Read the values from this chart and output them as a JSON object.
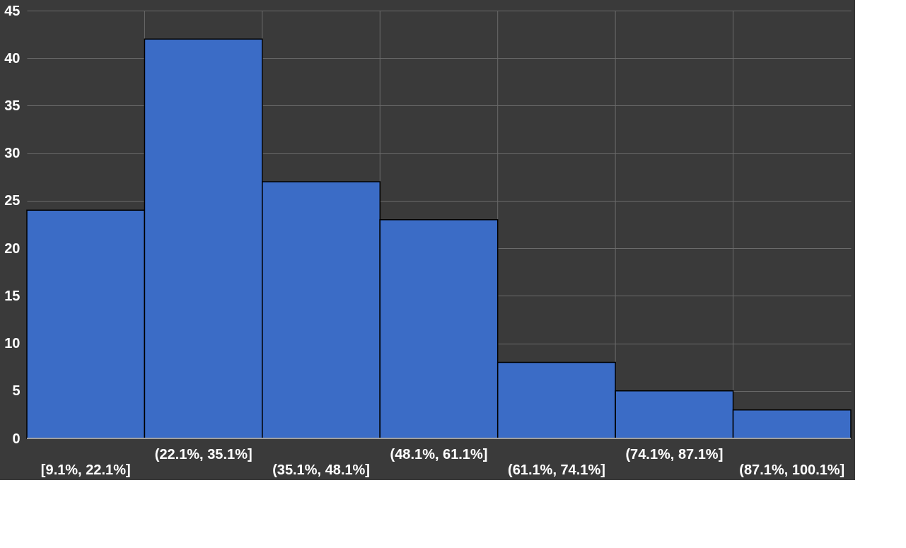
{
  "chart_data": {
    "type": "bar",
    "categories": [
      "[9.1%, 22.1%]",
      "(22.1%, 35.1%]",
      "(35.1%, 48.1%]",
      "(48.1%, 61.1%]",
      "(61.1%, 74.1%]",
      "(74.1%, 87.1%]",
      "(87.1%, 100.1%]"
    ],
    "values": [
      24,
      42,
      27,
      23,
      8,
      5,
      3
    ],
    "color": "#3b6cc6",
    "ylim": [
      0,
      45
    ],
    "yticks": [
      0,
      5,
      10,
      15,
      20,
      25,
      30,
      35,
      40,
      45
    ],
    "grid": true
  }
}
